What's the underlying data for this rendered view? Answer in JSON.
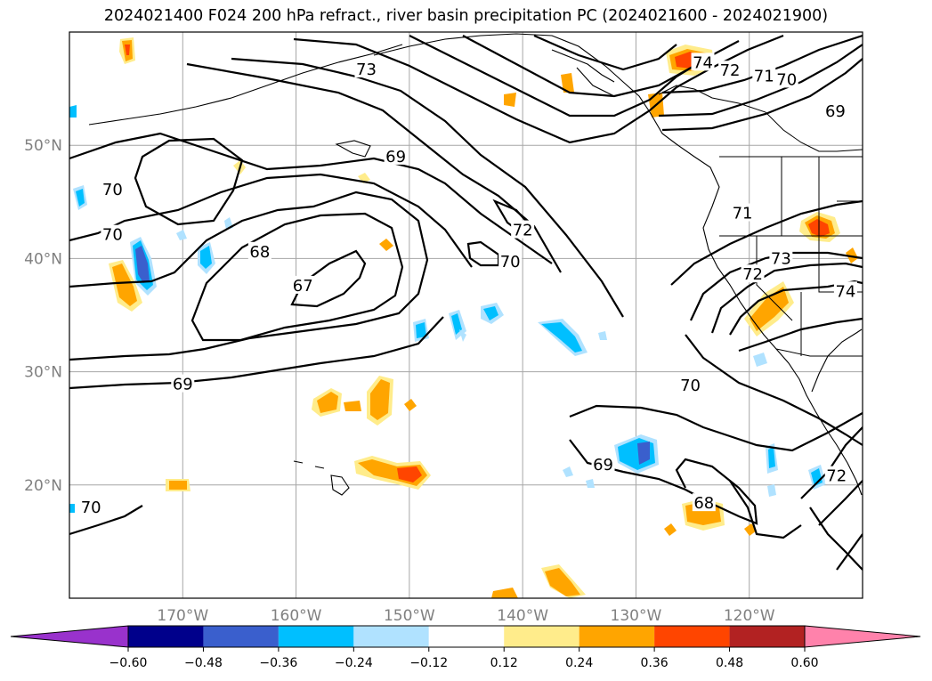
{
  "title": "2024021400 F024 200 hPa refract., river basin precipitation PC (2024021600 - 2024021900)",
  "map": {
    "lon_range": [
      -180,
      -110
    ],
    "lat_range": [
      10,
      60
    ],
    "lat_ticks": [
      {
        "value": 50,
        "label": "50°N"
      },
      {
        "value": 40,
        "label": "40°N"
      },
      {
        "value": 30,
        "label": "30°N"
      },
      {
        "value": 20,
        "label": "20°N"
      }
    ],
    "lon_ticks": [
      {
        "value": -170,
        "label": "170°W"
      },
      {
        "value": -160,
        "label": "160°W"
      },
      {
        "value": -150,
        "label": "150°W"
      },
      {
        "value": -140,
        "label": "140°W"
      },
      {
        "value": -130,
        "label": "130°W"
      },
      {
        "value": -120,
        "label": "120°W"
      }
    ],
    "gridlines": true,
    "contour_labels": [
      {
        "text": "73",
        "lon": -153.8,
        "lat": 56.7
      },
      {
        "text": "74",
        "lon": -124.1,
        "lat": 57.3
      },
      {
        "text": "72",
        "lon": -121.7,
        "lat": 56.6
      },
      {
        "text": "71",
        "lon": -118.7,
        "lat": 56.1
      },
      {
        "text": "70",
        "lon": -116.7,
        "lat": 55.8
      },
      {
        "text": "69",
        "lon": -112.4,
        "lat": 53.0
      },
      {
        "text": "69",
        "lon": -151.2,
        "lat": 49.0
      },
      {
        "text": "70",
        "lon": -176.2,
        "lat": 46.1
      },
      {
        "text": "70",
        "lon": -176.2,
        "lat": 42.1
      },
      {
        "text": "72",
        "lon": -140.0,
        "lat": 42.5
      },
      {
        "text": "70",
        "lon": -141.1,
        "lat": 39.7
      },
      {
        "text": "68",
        "lon": -163.2,
        "lat": 40.6
      },
      {
        "text": "67",
        "lon": -159.4,
        "lat": 37.6
      },
      {
        "text": "71",
        "lon": -120.6,
        "lat": 44.0
      },
      {
        "text": "73",
        "lon": -117.2,
        "lat": 40.0
      },
      {
        "text": "72",
        "lon": -119.7,
        "lat": 38.6
      },
      {
        "text": "74",
        "lon": -111.5,
        "lat": 37.1
      },
      {
        "text": "69",
        "lon": -170.0,
        "lat": 28.9
      },
      {
        "text": "70",
        "lon": -125.2,
        "lat": 28.8
      },
      {
        "text": "69",
        "lon": -132.9,
        "lat": 21.8
      },
      {
        "text": "68",
        "lon": -124.0,
        "lat": 18.4
      },
      {
        "text": "72",
        "lon": -112.3,
        "lat": 20.8
      },
      {
        "text": "70",
        "lon": -178.1,
        "lat": 18.0
      }
    ]
  },
  "colorbar": {
    "ticks": [
      "−0.60",
      "−0.48",
      "−0.36",
      "−0.24",
      "−0.12",
      "0.12",
      "0.24",
      "0.36",
      "0.48",
      "0.60"
    ],
    "colors": {
      "under": "#9932cc",
      "bins": [
        "#00008b",
        "#3a5fcd",
        "#00bfff",
        "#b0e2ff",
        "#ffffff",
        "#ffec8b",
        "#ffa500",
        "#ff4500",
        "#b22222"
      ],
      "over": "#ff82ab"
    }
  },
  "colors": {
    "frame": "#000000",
    "grid": "#a6a6a6",
    "contour": "#000000",
    "tick_label": "#808080"
  }
}
